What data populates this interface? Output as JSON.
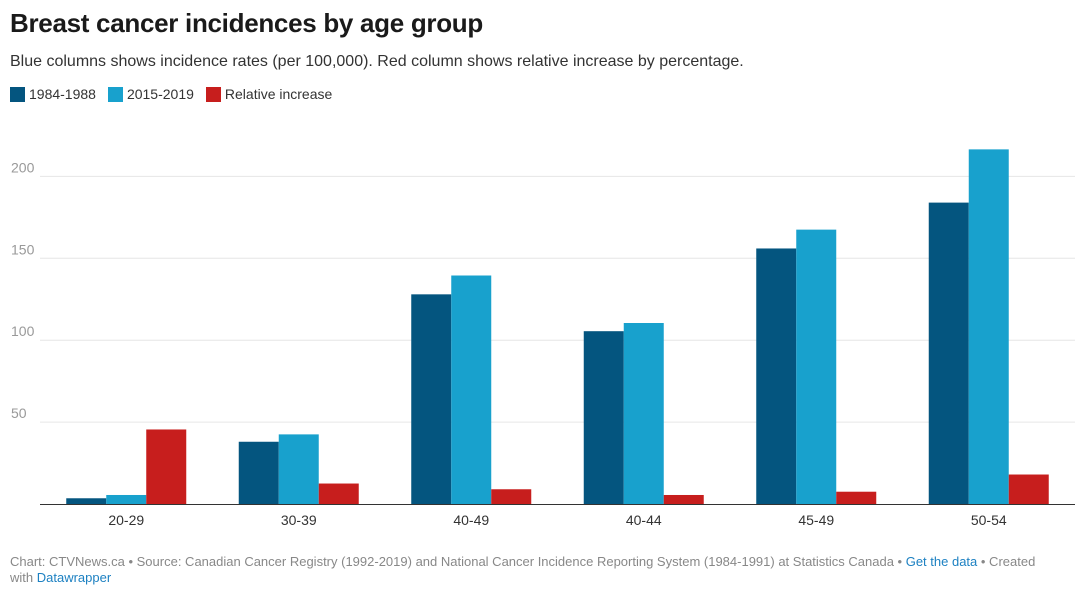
{
  "title": "Breast cancer incidences by age group",
  "subtitle": "Blue columns shows incidence rates (per 100,000). Red column shows relative increase by percentage.",
  "footer": {
    "prefix": "Chart: CTVNews.ca • Source: Canadian Cancer Registry (1992-2019) and National Cancer Incidence Reporting System (1984-1991) at Statistics Canada • ",
    "get_data_link": "Get the data",
    "created_text": " • Created with ",
    "datawrapper_link": "Datawrapper"
  },
  "colors": {
    "series1": "#04557f",
    "series2": "#18a1cd",
    "series3": "#c71e1d",
    "grid": "#e6e6e6",
    "axis": "#333333",
    "tick": "#999999"
  },
  "chart_data": {
    "type": "bar",
    "title": "Breast cancer incidences by age group",
    "categories": [
      "20-29",
      "30-39",
      "40-49",
      "40-44",
      "45-49",
      "50-54"
    ],
    "series": [
      {
        "name": "1984-1988",
        "values": [
          3.5,
          38,
          128,
          105.5,
          156,
          184
        ]
      },
      {
        "name": "2015-2019",
        "values": [
          5.5,
          42.5,
          139.5,
          110.5,
          167.5,
          216.5
        ]
      },
      {
        "name": "Relative increase",
        "values": [
          45.5,
          12.5,
          9,
          5.5,
          7.5,
          18
        ]
      }
    ],
    "yticks": [
      50,
      100,
      150,
      200
    ],
    "ylim": [
      0,
      230
    ],
    "grid": true,
    "legend_position": "top-left"
  }
}
